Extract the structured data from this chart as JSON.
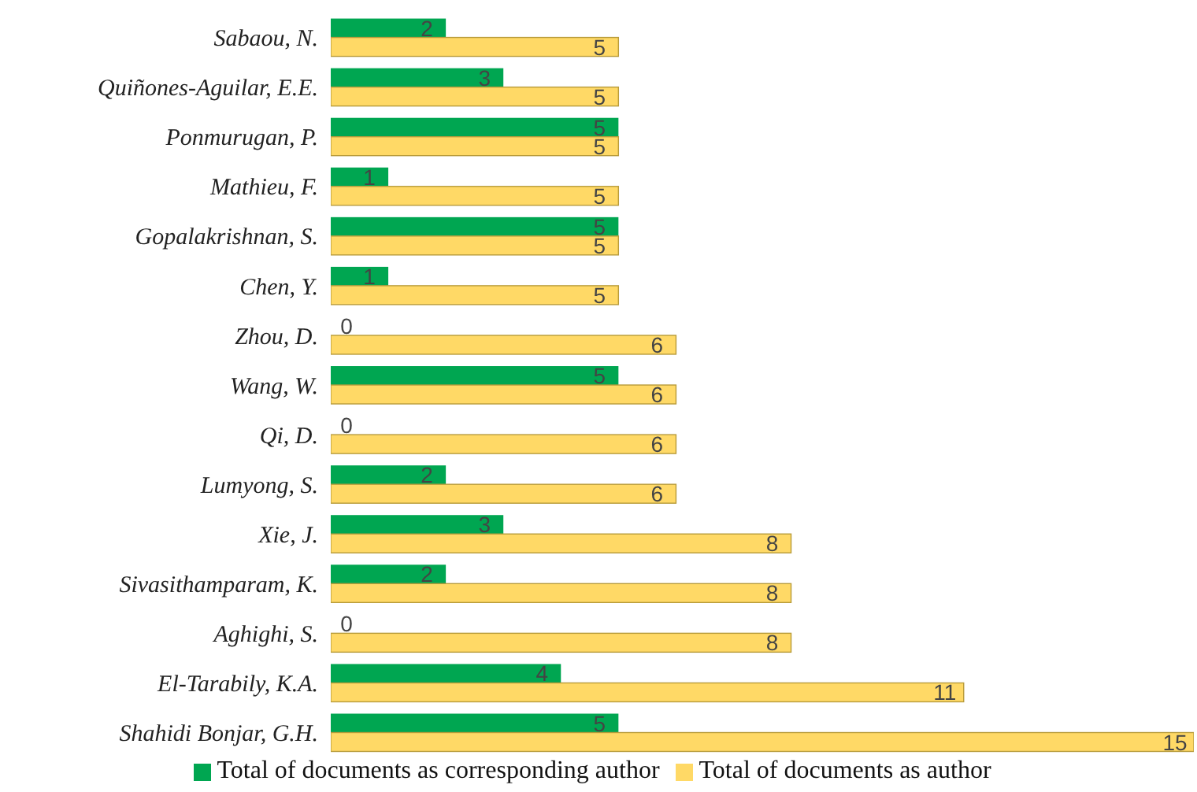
{
  "chart_data": {
    "type": "bar",
    "orientation": "horizontal",
    "categories": [
      "Sabaou, N.",
      "Quiñones-Aguilar, E.E.",
      "Ponmurugan, P.",
      "Mathieu, F.",
      "Gopalakrishnan, S.",
      "Chen, Y.",
      "Zhou, D.",
      "Wang, W.",
      "Qi, D.",
      "Lumyong, S.",
      "Xie, J.",
      "Sivasithamparam, K.",
      "Aghighi, S.",
      "El-Tarabily, K.A.",
      "Shahidi Bonjar, G.H."
    ],
    "series": [
      {
        "name": "Total of documents as corresponding author",
        "color": "#00a651",
        "values": [
          2,
          3,
          5,
          1,
          5,
          1,
          0,
          5,
          0,
          2,
          3,
          2,
          0,
          4,
          5
        ]
      },
      {
        "name": "Total of documents as author",
        "color": "#ffd966",
        "values": [
          5,
          5,
          5,
          5,
          5,
          5,
          6,
          6,
          6,
          6,
          8,
          8,
          8,
          11,
          15
        ]
      }
    ],
    "data_labels": true,
    "legend": "bottom"
  }
}
